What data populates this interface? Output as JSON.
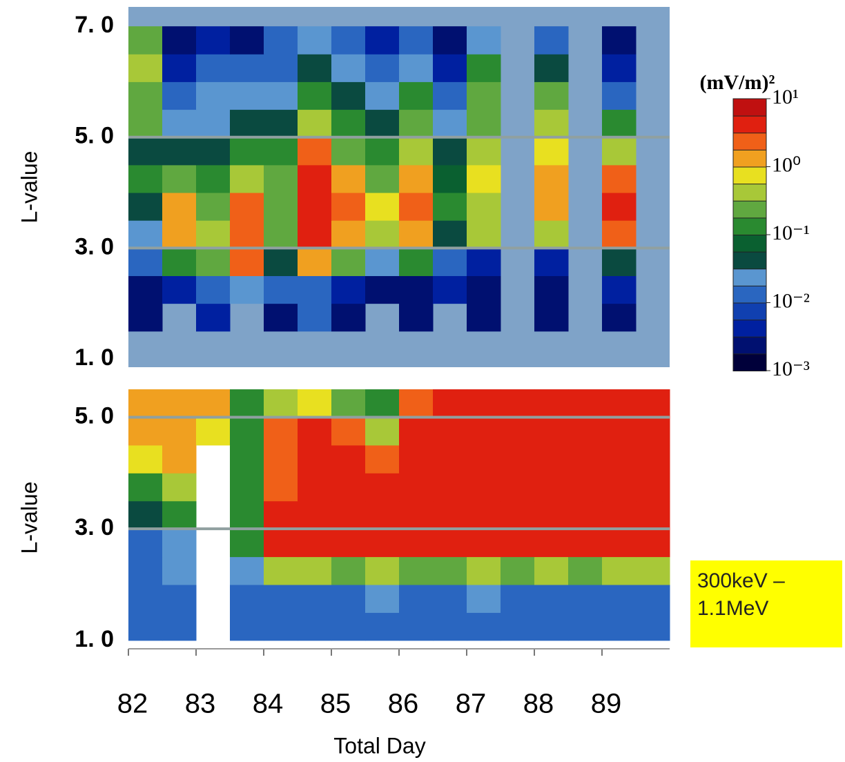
{
  "chart_data": [
    {
      "type": "heatmap",
      "ylabel": "L-value",
      "background": "#7fa3c8",
      "xlim": [
        82,
        90
      ],
      "ylim": [
        0.85,
        7.35
      ],
      "yticks": [
        {
          "value": 1,
          "label": "1. 0"
        },
        {
          "value": 3,
          "label": "3. 0"
        },
        {
          "value": 5,
          "label": "5. 0"
        },
        {
          "value": 7,
          "label": "7. 0"
        }
      ],
      "gridlines": [
        3,
        5
      ],
      "x_bins": [
        82,
        82.5,
        83,
        83.5,
        84,
        84.5,
        85,
        85.5,
        86,
        86.5,
        87,
        87.5,
        88,
        88.5,
        89,
        89.5,
        90
      ],
      "y_bins": [
        1,
        1.5,
        2,
        2.5,
        3,
        3.5,
        4,
        4.5,
        5,
        5.5,
        6,
        6.5,
        7
      ],
      "values": [
        [
          null,
          null,
          null,
          null,
          null,
          null,
          null,
          null,
          null,
          null,
          null,
          null,
          null,
          null,
          null,
          null
        ],
        [
          0.002,
          null,
          0.005,
          null,
          0.003,
          0.01,
          0.003,
          null,
          0.002,
          null,
          0.003,
          null,
          0.002,
          null,
          0.003,
          null
        ],
        [
          0.003,
          0.005,
          0.01,
          0.02,
          0.01,
          0.01,
          0.004,
          0.002,
          0.003,
          0.004,
          0.002,
          null,
          0.003,
          null,
          0.004,
          null
        ],
        [
          0.01,
          0.1,
          0.2,
          2,
          0.05,
          1.5,
          0.3,
          0.02,
          0.1,
          0.01,
          0.005,
          null,
          0.004,
          null,
          0.05,
          null
        ],
        [
          0.03,
          1,
          0.5,
          3,
          0.2,
          4,
          1.5,
          0.5,
          1.5,
          0.05,
          0.4,
          null,
          0.5,
          null,
          3,
          null
        ],
        [
          0.05,
          1.5,
          0.3,
          2,
          0.3,
          5,
          2,
          0.8,
          2,
          0.1,
          0.5,
          null,
          1,
          null,
          4,
          null
        ],
        [
          0.1,
          0.3,
          0.1,
          0.5,
          0.2,
          5,
          1.5,
          0.3,
          1,
          0.08,
          0.6,
          null,
          1,
          null,
          2,
          null
        ],
        [
          0.05,
          0.05,
          0.05,
          0.1,
          0.1,
          3,
          0.3,
          0.1,
          0.5,
          0.05,
          0.4,
          null,
          0.8,
          null,
          0.5,
          null
        ],
        [
          0.2,
          0.02,
          0.03,
          0.05,
          0.05,
          0.5,
          0.1,
          0.05,
          0.2,
          0.02,
          0.3,
          null,
          0.5,
          null,
          0.1,
          null
        ],
        [
          0.3,
          0.01,
          0.02,
          0.02,
          0.02,
          0.1,
          0.05,
          0.02,
          0.1,
          0.01,
          0.2,
          null,
          0.2,
          null,
          0.01,
          null
        ],
        [
          0.5,
          0.005,
          0.01,
          0.01,
          0.01,
          0.05,
          0.02,
          0.01,
          0.03,
          0.005,
          0.1,
          null,
          0.05,
          null,
          0.005,
          null
        ],
        [
          0.2,
          0.002,
          0.005,
          0.003,
          0.01,
          0.02,
          0.01,
          0.005,
          0.01,
          0.003,
          0.02,
          null,
          0.01,
          null,
          0.003,
          null
        ]
      ],
      "colorbar": {
        "title": "(mV/m)²",
        "lim": [
          0.001,
          10
        ],
        "log": true,
        "ticks": [
          {
            "value": 10,
            "label": "10¹"
          },
          {
            "value": 1,
            "label": "10⁰"
          },
          {
            "value": 0.1,
            "label": "10⁻¹"
          },
          {
            "value": 0.01,
            "label": "10⁻²"
          },
          {
            "value": 0.001,
            "label": "10⁻³"
          }
        ],
        "colors": [
          "#00003a",
          "#001070",
          "#0020a0",
          "#1040b0",
          "#2a66c0",
          "#5a96d0",
          "#0a4a40",
          "#0a6030",
          "#2a8a30",
          "#60a840",
          "#a8c838",
          "#e8e020",
          "#f0a020",
          "#f06018",
          "#e02010",
          "#c01010"
        ]
      }
    },
    {
      "type": "heatmap",
      "ylabel": "L-value",
      "xlabel": "Total Day",
      "background": "#ffffff",
      "annotation": "300keV – 1.1MeV",
      "xlim": [
        82,
        90
      ],
      "ylim": [
        0.85,
        5.55
      ],
      "xticks": [
        82,
        83,
        84,
        85,
        86,
        87,
        88,
        89
      ],
      "yticks": [
        {
          "value": 1,
          "label": "1. 0"
        },
        {
          "value": 3,
          "label": "3. 0"
        },
        {
          "value": 5,
          "label": "5. 0"
        }
      ],
      "gridlines": [
        3,
        5
      ],
      "x_bins": [
        82,
        82.5,
        83,
        83.5,
        84,
        84.5,
        85,
        85.5,
        86,
        86.5,
        87,
        87.5,
        88,
        88.5,
        89,
        89.5,
        90
      ],
      "y_bins": [
        1,
        1.5,
        2,
        2.5,
        3,
        3.5,
        4,
        4.5,
        5,
        5.5
      ],
      "values": [
        [
          0.01,
          0.01,
          null,
          0.01,
          0.01,
          0.01,
          0.01,
          0.01,
          0.01,
          0.01,
          0.01,
          0.01,
          0.01,
          0.01,
          0.01,
          0.01
        ],
        [
          0.01,
          0.01,
          null,
          0.01,
          0.01,
          0.01,
          0.01,
          0.02,
          0.01,
          0.01,
          0.02,
          0.01,
          0.01,
          0.01,
          0.01,
          0.01
        ],
        [
          0.01,
          0.02,
          null,
          0.02,
          0.5,
          0.5,
          0.3,
          0.5,
          0.3,
          0.3,
          0.5,
          0.3,
          0.5,
          0.3,
          0.5,
          0.5
        ],
        [
          0.01,
          0.02,
          null,
          0.1,
          5,
          5,
          5,
          5,
          5,
          5,
          5,
          5,
          5,
          5,
          5,
          5
        ],
        [
          0.05,
          0.1,
          null,
          0.1,
          5,
          5,
          5,
          5,
          5,
          5,
          5,
          5,
          5,
          5,
          5,
          5
        ],
        [
          0.1,
          0.5,
          null,
          0.1,
          3,
          5,
          5,
          5,
          5,
          5,
          5,
          5,
          5,
          5,
          5,
          5
        ],
        [
          0.8,
          1,
          null,
          0.1,
          3,
          5,
          5,
          2,
          5,
          5,
          5,
          5,
          5,
          5,
          5,
          5
        ],
        [
          1,
          1.5,
          0.8,
          0.1,
          2,
          5,
          3,
          0.5,
          5,
          5,
          5,
          5,
          5,
          5,
          5,
          5
        ],
        [
          1.5,
          1.5,
          1.5,
          0.1,
          0.5,
          0.8,
          0.3,
          0.1,
          2,
          5,
          5,
          5,
          5,
          5,
          5,
          5
        ]
      ]
    }
  ]
}
